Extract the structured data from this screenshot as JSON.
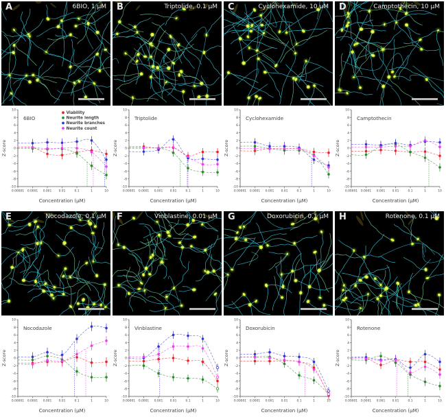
{
  "figure": {
    "panels": [
      {
        "label": "A",
        "image_title": "6BIO, 1 µM"
      },
      {
        "label": "B",
        "image_title": "Triptolide, 0.1 µM"
      },
      {
        "label": "C",
        "image_title": "Cyclohexamide, 10 µM"
      },
      {
        "label": "D",
        "image_title": "Camptothecin, 10 µM"
      },
      {
        "label": "E",
        "image_title": "Nocodazole, 0.1 µM"
      },
      {
        "label": "F",
        "image_title": "Vinblastine, 0.01 µM"
      },
      {
        "label": "G",
        "image_title": "Doxorubicin, 0.1 µM"
      },
      {
        "label": "H",
        "image_title": "Rotenone, 0.1 µM"
      }
    ]
  },
  "chart_data": {
    "shared_axes": {
      "type": "scatter-log-dose-response",
      "xlabel": "Concentration (µM)",
      "ylabel": "Z-score",
      "xscale": "log",
      "xlim": [
        1e-05,
        10
      ],
      "ylim": [
        -10,
        10
      ],
      "xticks": [
        "0.00001",
        "0.0001",
        "0.001",
        "0.01",
        "0.1",
        "1",
        "10"
      ],
      "yticks": [
        "-10",
        "-8",
        "-6",
        "-4",
        "-2",
        "0",
        "2",
        "4",
        "6",
        "8",
        "10"
      ],
      "legend_panel": "A",
      "colors": {
        "viability": "#e8232a",
        "neurite_length": "#2a8a2a",
        "neurite_branches": "#3434d6",
        "neurite_count": "#e93fe9"
      }
    },
    "charts": [
      {
        "title": "6BIO",
        "x": [
          0.0001,
          0.001,
          0.01,
          0.1,
          1,
          10
        ],
        "error_bar": 1.1,
        "series": [
          {
            "name": "Viability",
            "color": "#e8232a",
            "values": [
              0.2,
              -1.5,
              -1.8,
              -1.1,
              -0.6,
              -1.5
            ],
            "open": []
          },
          {
            "name": "Neurite length",
            "color": "#2a8a2a",
            "values": [
              -0.1,
              -0.3,
              -0.2,
              -1.4,
              -4.6,
              -7.0
            ],
            "open": []
          },
          {
            "name": "Neurite branches",
            "color": "#3434d6",
            "values": [
              1.3,
              1.5,
              1.4,
              1.7,
              2.0,
              -3.0
            ],
            "open": []
          },
          {
            "name": "Neurite count",
            "color": "#e93fe9",
            "values": [
              0.2,
              -0.1,
              0.0,
              0.0,
              -1.0,
              -4.8
            ],
            "open": []
          }
        ],
        "ec50_lines": [
          {
            "x": 0.5,
            "color": "#2a8a2a"
          },
          {
            "x": 1.3,
            "color": "#e93fe9"
          },
          {
            "x": 7.5,
            "color": "#3434d6"
          }
        ]
      },
      {
        "title": "Triptolide",
        "x": [
          0.0001,
          0.001,
          0.01,
          0.1,
          1,
          10
        ],
        "error_bar": 1.0,
        "series": [
          {
            "name": "Viability",
            "color": "#e8232a",
            "values": [
              0.4,
              0.0,
              0.1,
              -2.0,
              -1.0,
              -1.0
            ],
            "open": []
          },
          {
            "name": "Neurite length",
            "color": "#2a8a2a",
            "values": [
              0.0,
              0.0,
              -1.2,
              -5.2,
              -6.2,
              -6.3
            ],
            "open": []
          },
          {
            "name": "Neurite branches",
            "color": "#3434d6",
            "values": [
              -0.9,
              -0.4,
              2.3,
              -2.6,
              -2.8,
              -3.0
            ],
            "open": []
          },
          {
            "name": "Neurite count",
            "color": "#e93fe9",
            "values": [
              0.1,
              0.0,
              0.2,
              -2.2,
              -4.2,
              -4.2
            ],
            "open": []
          }
        ],
        "ec50_lines": [
          {
            "x": 0.03,
            "color": "#2a8a2a"
          },
          {
            "x": 0.09,
            "color": "#3434d6"
          },
          {
            "x": 0.1,
            "color": "#e93fe9"
          }
        ]
      },
      {
        "title": "Cyclohexamide",
        "x": [
          0.0001,
          0.001,
          0.01,
          0.1,
          1,
          10
        ],
        "error_bar": 1.1,
        "series": [
          {
            "name": "Viability",
            "color": "#e8232a",
            "values": [
              -0.7,
              -0.1,
              -0.2,
              -0.1,
              -1.0,
              -1.2
            ],
            "open": []
          },
          {
            "name": "Neurite length",
            "color": "#2a8a2a",
            "values": [
              0.5,
              -0.1,
              -0.6,
              -0.6,
              -1.8,
              -6.8
            ],
            "open": []
          },
          {
            "name": "Neurite branches",
            "color": "#3434d6",
            "values": [
              1.5,
              0.5,
              0.5,
              0.1,
              -3.0,
              -4.5
            ],
            "open": []
          },
          {
            "name": "Neurite count",
            "color": "#e93fe9",
            "values": [
              -0.1,
              -0.2,
              -0.1,
              -0.2,
              -2.0,
              -5.0
            ],
            "open": []
          }
        ],
        "ec50_lines": [
          {
            "x": 0.7,
            "color": "#3434d6"
          }
        ]
      },
      {
        "title": "Camptothecin",
        "x": [
          0.0001,
          0.001,
          0.01,
          0.1,
          1,
          10
        ],
        "error_bar": 1.1,
        "series": [
          {
            "name": "Viability",
            "color": "#e8232a",
            "values": [
              -0.8,
              -0.5,
              -0.7,
              -1.0,
              -0.9,
              -2.0
            ],
            "open": []
          },
          {
            "name": "Neurite length",
            "color": "#2a8a2a",
            "values": [
              -1.7,
              0.5,
              1.0,
              -1.0,
              -2.5,
              -5.0
            ],
            "open": []
          },
          {
            "name": "Neurite branches",
            "color": "#3434d6",
            "values": [
              1.0,
              0.8,
              1.3,
              0.8,
              1.7,
              1.5
            ],
            "open": []
          },
          {
            "name": "Neurite count",
            "color": "#e93fe9",
            "values": [
              0.3,
              0.3,
              0.5,
              0.5,
              2.0,
              0.3
            ],
            "open": []
          }
        ],
        "ec50_lines": [
          {
            "x": 1.8,
            "color": "#2a8a2a"
          }
        ]
      },
      {
        "title": "Nocodazole",
        "x": [
          0.0001,
          0.001,
          0.01,
          0.1,
          1,
          10
        ],
        "error_bar": 1.2,
        "series": [
          {
            "name": "Viability",
            "color": "#e8232a",
            "values": [
              -1.3,
              -1.0,
              -1.0,
              0.2,
              -1.2,
              -1.0
            ],
            "open": []
          },
          {
            "name": "Neurite length",
            "color": "#2a8a2a",
            "values": [
              -0.5,
              0.5,
              -0.4,
              -3.5,
              -5.0,
              -5.0
            ],
            "open": []
          },
          {
            "name": "Neurite branches",
            "color": "#3434d6",
            "values": [
              0.3,
              1.5,
              0.8,
              5.0,
              8.2,
              7.8
            ],
            "open": []
          },
          {
            "name": "Neurite count",
            "color": "#e93fe9",
            "values": [
              -1.6,
              -0.6,
              -0.8,
              1.0,
              3.2,
              4.5
            ],
            "open": []
          }
        ],
        "ec50_lines": [
          {
            "x": 0.07,
            "color": "#3434d6"
          },
          {
            "x": 0.4,
            "color": "#e93fe9"
          }
        ]
      },
      {
        "title": "Vinblastine",
        "x": [
          0.0001,
          0.001,
          0.01,
          0.1,
          1,
          10
        ],
        "error_bar": 1.0,
        "series": [
          {
            "name": "Viability",
            "color": "#e8232a",
            "values": [
              -0.8,
              -0.3,
              0.0,
              -0.7,
              -1.0,
              -6.0
            ],
            "open": []
          },
          {
            "name": "Neurite length",
            "color": "#2a8a2a",
            "values": [
              -2.0,
              -4.0,
              -5.0,
              -5.3,
              -5.6,
              -8.0
            ],
            "open": [
              5
            ]
          },
          {
            "name": "Neurite branches",
            "color": "#3434d6",
            "values": [
              0.0,
              3.0,
              6.0,
              5.8,
              5.0,
              -2.5
            ],
            "open": [
              5
            ]
          },
          {
            "name": "Neurite count",
            "color": "#e93fe9",
            "values": [
              0.3,
              1.0,
              3.0,
              3.0,
              2.5,
              -5.0
            ],
            "open": [
              5
            ]
          }
        ],
        "ec50_lines": [
          {
            "x": 0.0012,
            "color": "#3434d6"
          }
        ]
      },
      {
        "title": "Doxorubicin",
        "x": [
          0.0001,
          0.001,
          0.01,
          0.1,
          1,
          10
        ],
        "error_bar": 1.0,
        "series": [
          {
            "name": "Viability",
            "color": "#e8232a",
            "values": [
              -0.8,
              -0.8,
              -0.7,
              -1.0,
              -2.5,
              -9.8
            ],
            "open": []
          },
          {
            "name": "Neurite length",
            "color": "#2a8a2a",
            "values": [
              0.3,
              0.3,
              -1.5,
              -4.5,
              -5.8,
              -9.4
            ],
            "open": [
              5
            ]
          },
          {
            "name": "Neurite branches",
            "color": "#3434d6",
            "values": [
              1.0,
              1.5,
              0.5,
              0.3,
              -1.0,
              -8.6
            ],
            "open": [
              5
            ]
          },
          {
            "name": "Neurite count",
            "color": "#e93fe9",
            "values": [
              0.2,
              0.0,
              -0.5,
              -1.0,
              -3.0,
              -9.4
            ],
            "open": [
              5
            ]
          }
        ],
        "ec50_lines": [
          {
            "x": 0.25,
            "color": "#e93fe9"
          }
        ]
      },
      {
        "title": "Rotenone",
        "x": [
          0.0001,
          0.001,
          0.01,
          0.1,
          1,
          10
        ],
        "error_bar": 1.1,
        "series": [
          {
            "name": "Viability",
            "color": "#e8232a",
            "values": [
              0.0,
              -1.8,
              -0.5,
              -1.0,
              -1.0,
              -3.0
            ],
            "open": []
          },
          {
            "name": "Neurite length",
            "color": "#2a8a2a",
            "values": [
              -0.5,
              0.5,
              -1.2,
              -4.3,
              -6.2,
              -7.3
            ],
            "open": []
          },
          {
            "name": "Neurite branches",
            "color": "#3434d6",
            "values": [
              0.2,
              -0.5,
              -0.3,
              -2.5,
              1.0,
              -1.0
            ],
            "open": []
          },
          {
            "name": "Neurite count",
            "color": "#e93fe9",
            "values": [
              -0.2,
              -0.7,
              -0.5,
              -3.8,
              -2.3,
              -4.3
            ],
            "open": []
          }
        ],
        "ec50_lines": [
          {
            "x": 0.012,
            "color": "#e93fe9"
          },
          {
            "x": 0.07,
            "color": "#2a8a2a"
          }
        ]
      }
    ]
  }
}
